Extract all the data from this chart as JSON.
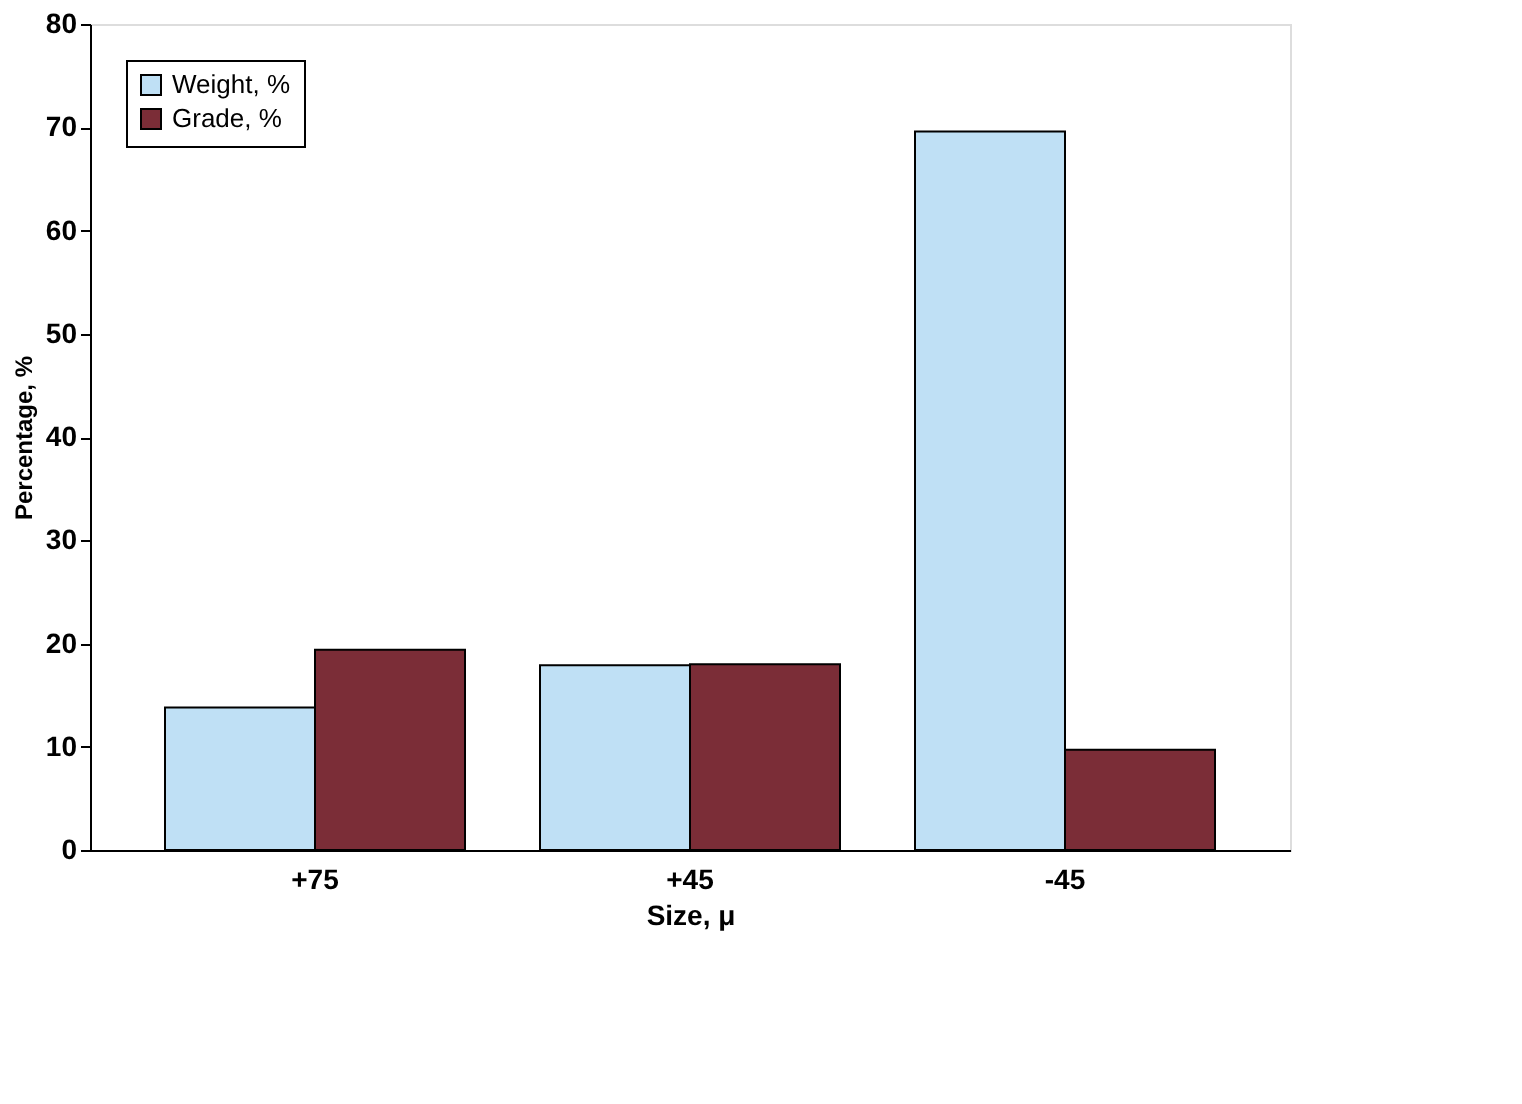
{
  "chart_data": {
    "type": "bar",
    "xlabel": "Size, μ",
    "ylabel": "Percentage, %",
    "categories": [
      "+75",
      "+45",
      "-45"
    ],
    "series": [
      {
        "name": "Weight, %",
        "color": "#bfe0f5",
        "values": [
          13.8,
          17.9,
          69.6
        ]
      },
      {
        "name": "Grade, %",
        "color": "#7b2d37",
        "values": [
          19.4,
          18.0,
          9.7
        ]
      }
    ],
    "ylim": [
      0,
      80
    ],
    "yticks": [
      0,
      10,
      20,
      30,
      40,
      50,
      60,
      70,
      80
    ],
    "grid": false,
    "legend": "top left"
  }
}
